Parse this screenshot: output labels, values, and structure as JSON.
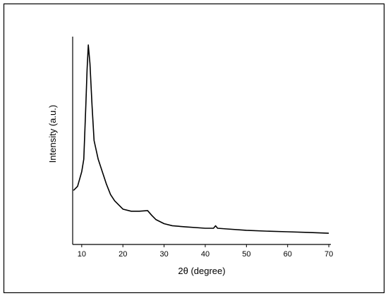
{
  "chart_data": {
    "type": "line",
    "xlabel": "2θ (degree)",
    "ylabel": "Intensity (a.u.)",
    "x": [
      8,
      9,
      10,
      10.5,
      11,
      11.3,
      11.6,
      12,
      12.5,
      13,
      14,
      15,
      16,
      17,
      18,
      19,
      20,
      22,
      24,
      26,
      27,
      28,
      30,
      32,
      35,
      40,
      42,
      42.5,
      43,
      45,
      50,
      55,
      60,
      65,
      70
    ],
    "y": [
      26,
      28,
      35,
      41,
      67,
      84,
      96,
      87,
      67,
      50,
      41,
      35,
      29,
      24,
      21,
      19,
      17,
      16,
      16,
      16.3,
      14,
      12,
      10,
      9,
      8.5,
      7.8,
      7.8,
      9,
      7.8,
      7.5,
      6.8,
      6.4,
      6.1,
      5.8,
      5.4
    ],
    "color": "#000000",
    "xlim": [
      7.8,
      70.5
    ],
    "xticks": [
      10,
      20,
      30,
      40,
      50,
      60,
      70
    ],
    "ylim": [
      0,
      100
    ]
  }
}
